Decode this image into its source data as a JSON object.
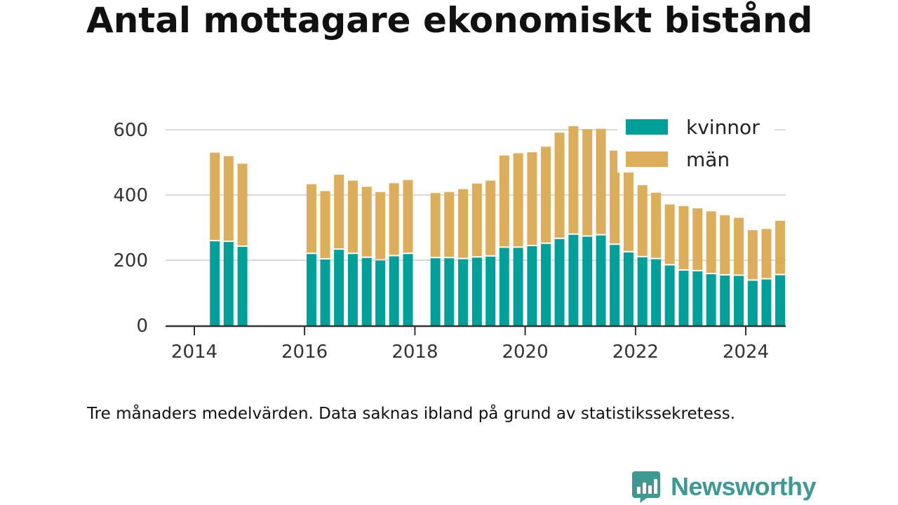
{
  "title": "Antal mottagare ekonomiskt bistånd",
  "note": "Tre månaders medelvärden. Data saknas ibland på grund av statistikssekretess.",
  "brand": {
    "name": "Newsworthy",
    "color": "#3d9a92",
    "icon": "newsworthy-logo-icon"
  },
  "chart_data": {
    "type": "bar",
    "stacked": true,
    "x_axis": {
      "tick_labels": [
        "2014",
        "2016",
        "2018",
        "2020",
        "2022",
        "2024"
      ],
      "range": [
        "2014-01-01",
        "2024-12-31"
      ]
    },
    "y_axis": {
      "tick_labels": [
        "0",
        "200",
        "400",
        "600"
      ],
      "ticks": [
        0,
        200,
        400,
        600
      ],
      "range": [
        0,
        640
      ]
    },
    "grid": true,
    "legend_position": "top-right",
    "series": [
      {
        "name": "kvinnor",
        "color": "#00a09a",
        "values": [
          258,
          256,
          241,
          null,
          null,
          null,
          null,
          219,
          202,
          232,
          219,
          207,
          199,
          212,
          219,
          null,
          206,
          206,
          203,
          208,
          211,
          238,
          238,
          243,
          250,
          265,
          278,
          272,
          276,
          247,
          224,
          209,
          203,
          184,
          168,
          166,
          157,
          153,
          152,
          137,
          141,
          154
        ]
      },
      {
        "name": "män",
        "color": "#dcae5a",
        "values": [
          272,
          263,
          255,
          null,
          null,
          null,
          null,
          214,
          210,
          230,
          225,
          218,
          210,
          224,
          227,
          null,
          200,
          203,
          215,
          227,
          233,
          283,
          290,
          288,
          298,
          326,
          333,
          330,
          327,
          289,
          248,
          221,
          204,
          187,
          198,
          193,
          193,
          185,
          178,
          155,
          155,
          167
        ]
      }
    ],
    "periods": [
      {
        "period": "2014-04"
      },
      {
        "period": "2014-07"
      },
      {
        "period": "2014-10"
      },
      {
        "period": "2015-01"
      },
      {
        "period": "2015-04"
      },
      {
        "period": "2015-07"
      },
      {
        "period": "2015-10"
      },
      {
        "period": "2016-01"
      },
      {
        "period": "2016-04"
      },
      {
        "period": "2016-07"
      },
      {
        "period": "2016-10"
      },
      {
        "period": "2017-01"
      },
      {
        "period": "2017-04"
      },
      {
        "period": "2017-07"
      },
      {
        "period": "2017-10"
      },
      {
        "period": "2018-01"
      },
      {
        "period": "2018-04"
      },
      {
        "period": "2018-07"
      },
      {
        "period": "2018-10"
      },
      {
        "period": "2019-01"
      },
      {
        "period": "2019-04"
      },
      {
        "period": "2019-07"
      },
      {
        "period": "2019-10"
      },
      {
        "period": "2020-01"
      },
      {
        "period": "2020-04"
      },
      {
        "period": "2020-07"
      },
      {
        "period": "2020-10"
      },
      {
        "period": "2021-01"
      },
      {
        "period": "2021-04"
      },
      {
        "period": "2021-07"
      },
      {
        "period": "2021-10"
      },
      {
        "period": "2022-01"
      },
      {
        "period": "2022-04"
      },
      {
        "period": "2022-07"
      },
      {
        "period": "2022-10"
      },
      {
        "period": "2023-01"
      },
      {
        "period": "2023-04"
      },
      {
        "period": "2023-07"
      },
      {
        "period": "2023-10"
      },
      {
        "period": "2024-01"
      },
      {
        "period": "2024-04"
      },
      {
        "period": "2024-07"
      }
    ]
  }
}
